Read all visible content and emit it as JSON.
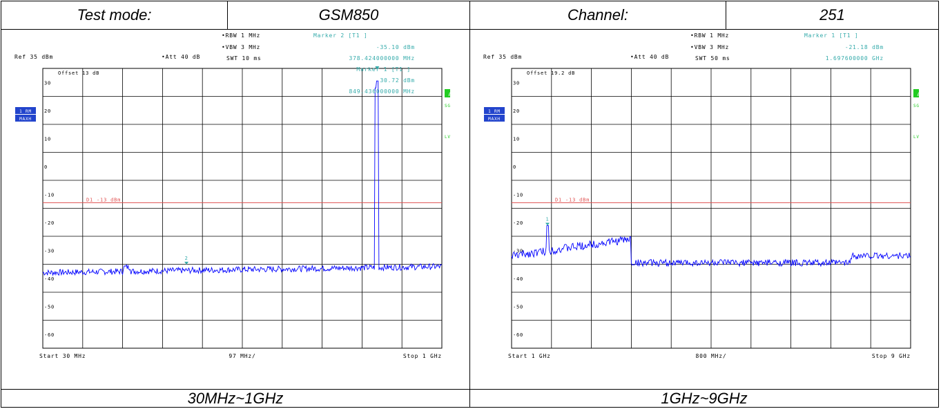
{
  "header": {
    "test_mode_label": "Test mode:",
    "test_mode_value": "GSM850",
    "channel_label": "Channel:",
    "channel_value": "251"
  },
  "plots": [
    {
      "ref": "Ref  35 dBm",
      "att": "Att  40 dB",
      "rbw": "RBW  1 MHz",
      "vbw": "VBW  3 MHz",
      "swt": "SWT  10 ms",
      "marker_top_title": "Marker 2 [T1 ]",
      "marker_top_level": "-35.10 dBm",
      "marker_top_freq": "378.424000000 MHz",
      "marker_inner_title": "Marker 1 [T1 ]",
      "marker_inner_level": "30.72 dBm",
      "marker_inner_freq": "849.436000000 MHz",
      "offset": "Offset  13 dB",
      "trace_label_1": "1 RM",
      "trace_label_2": "MAXH",
      "badge_a": "A",
      "sgl": "SGL",
      "lvl": "LVL",
      "limit_label": "D1  -13 dBm",
      "start": "Start 30 MHz",
      "span": "97 MHz/",
      "stop": "Stop  1 GHz",
      "marker_number": "2",
      "y_ticks": [
        "30",
        "20",
        "10",
        "0",
        "-10",
        "-20",
        "-30",
        "-40",
        "-50",
        "-60"
      ],
      "caption": "30MHz~1GHz"
    },
    {
      "ref": "Ref  35 dBm",
      "att": "Att  40 dB",
      "rbw": "RBW  1 MHz",
      "vbw": "VBW  3 MHz",
      "swt": "SWT  50 ms",
      "marker_top_title": "Marker 1 [T1 ]",
      "marker_top_level": "-21.18 dBm",
      "marker_top_freq": "1.697600000 GHz",
      "offset": "Offset  19.2 dB",
      "trace_label_1": "1 RM",
      "trace_label_2": "MAXH",
      "badge_a": "A",
      "sgl": "SGL",
      "lvl": "LVL",
      "limit_label": "D1  -13 dBm",
      "start": "Start 1 GHz",
      "span": "800 MHz/",
      "stop": "Stop  9 GHz",
      "marker_number": "1",
      "y_ticks": [
        "30",
        "20",
        "10",
        "0",
        "-10",
        "-20",
        "-30",
        "-40",
        "-50",
        "-60"
      ],
      "caption": "1GHz~9GHz"
    }
  ],
  "colors": {
    "trace": "#0000ff",
    "limit": "#e05050",
    "marker_text": "#33aaaa",
    "badge_green": "#22cc22",
    "trace_badge": "#2244cc"
  }
}
